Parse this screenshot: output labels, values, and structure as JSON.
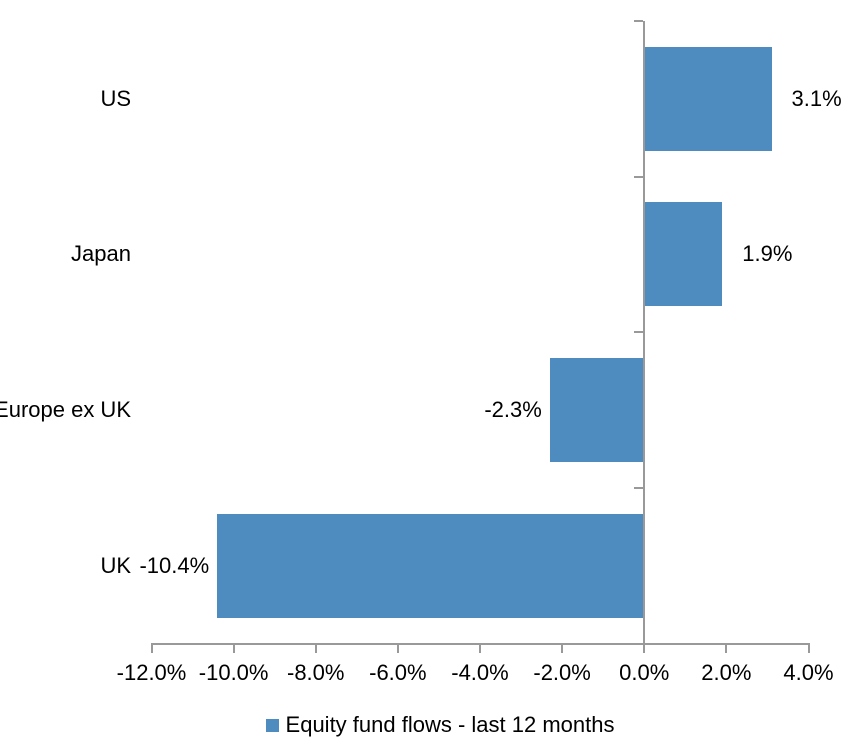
{
  "chart_data": {
    "type": "bar",
    "orientation": "horizontal",
    "title": "",
    "categories": [
      "US",
      "Japan",
      "Europe ex UK",
      "UK"
    ],
    "values": [
      3.1,
      1.9,
      -2.3,
      -10.4
    ],
    "data_labels": [
      "3.1%",
      "1.9%",
      "-2.3%",
      "-10.4%"
    ],
    "series_name": "Equity fund flows - last 12 months",
    "legend_position": "bottom",
    "grid": false,
    "xlim": [
      -12,
      4
    ],
    "x_ticks": [
      -12,
      -10,
      -8,
      -6,
      -4,
      -2,
      0,
      2,
      4
    ],
    "x_tick_labels": [
      "-12.0%",
      "-10.0%",
      "-8.0%",
      "-6.0%",
      "-4.0%",
      "-2.0%",
      "0.0%",
      "2.0%",
      "4.0%"
    ],
    "colors": {
      "bar": "#4E8BBE",
      "axis": "#999999",
      "text": "#000000",
      "background": "#ffffff"
    }
  }
}
